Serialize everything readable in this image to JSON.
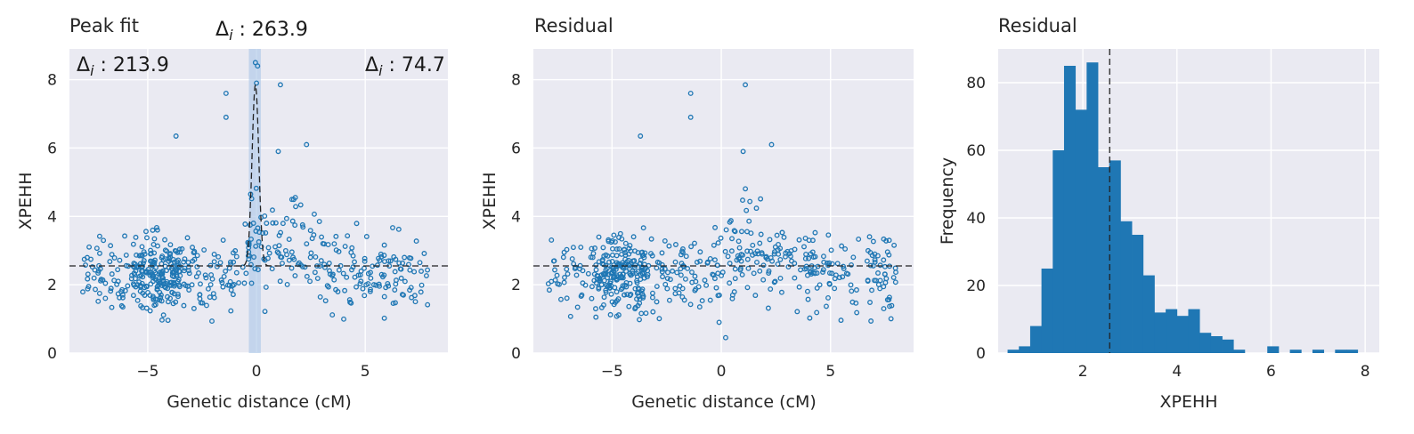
{
  "colors": {
    "point": "#1f77b4",
    "bar": "#1f77b4",
    "panel_bg": "#eaeaf2",
    "grid": "#ffffff",
    "dashed": "#222222",
    "highlight": "#aec7e8"
  },
  "chart_data": [
    {
      "type": "scatter",
      "title": "Peak fit",
      "xlabel": "Genetic distance (cM)",
      "ylabel": "XPEHH",
      "xlim": [
        -8.6,
        8.8
      ],
      "ylim": [
        0,
        8.9
      ],
      "xticks": [
        -5,
        0,
        5
      ],
      "xtick_labels": [
        "−5",
        "0",
        "5"
      ],
      "yticks": [
        0,
        2,
        4,
        6,
        8
      ],
      "ytick_labels": [
        "0",
        "2",
        "4",
        "6",
        "8"
      ],
      "grid": true,
      "baseline": 2.55,
      "highlight_band": [
        -0.35,
        0.2
      ],
      "peak_curve": {
        "center": -0.05,
        "width": 0.22,
        "height": 5.3
      },
      "annotations": [
        {
          "symbol": "Δ",
          "sub": "i",
          "text": " : 263.9"
        },
        {
          "symbol": "Δ",
          "sub": "i",
          "text": " : 213.9"
        },
        {
          "symbol": "Δ",
          "sub": "i",
          "text": " : 74.7"
        }
      ],
      "n_points": 560,
      "seed": 7,
      "outliers": [
        [
          -1.4,
          7.6
        ],
        [
          -1.4,
          6.9
        ],
        [
          1.1,
          7.85
        ],
        [
          -3.7,
          6.35
        ],
        [
          -0.05,
          8.5
        ],
        [
          0.05,
          8.4
        ],
        [
          0.0,
          7.9
        ],
        [
          2.3,
          6.1
        ],
        [
          1.0,
          5.9
        ]
      ]
    },
    {
      "type": "scatter",
      "title": "Residual",
      "xlabel": "Genetic distance (cM)",
      "ylabel": "XPEHH",
      "xlim": [
        -8.6,
        8.8
      ],
      "ylim": [
        0,
        8.9
      ],
      "xticks": [
        -5,
        0,
        5
      ],
      "xtick_labels": [
        "−5",
        "0",
        "5"
      ],
      "yticks": [
        0,
        2,
        4,
        6,
        8
      ],
      "ytick_labels": [
        "0",
        "2",
        "4",
        "6",
        "8"
      ],
      "grid": true,
      "baseline": 2.55,
      "n_points": 560,
      "seed": 11,
      "outliers": [
        [
          -1.4,
          7.6
        ],
        [
          -1.4,
          6.9
        ],
        [
          1.1,
          7.85
        ],
        [
          -3.7,
          6.35
        ],
        [
          2.3,
          6.1
        ],
        [
          1.0,
          5.9
        ],
        [
          0.2,
          0.45
        ],
        [
          -0.1,
          0.9
        ]
      ]
    },
    {
      "type": "histogram",
      "title": "Residual",
      "xlabel": "XPEHH",
      "ylabel": "Frequency",
      "xlim": [
        0.2,
        8.3
      ],
      "ylim": [
        0,
        90
      ],
      "xticks": [
        2,
        4,
        6,
        8
      ],
      "xtick_labels": [
        "2",
        "4",
        "6",
        "8"
      ],
      "yticks": [
        0,
        20,
        40,
        60,
        80
      ],
      "ytick_labels": [
        "0",
        "20",
        "40",
        "60",
        "80"
      ],
      "grid": true,
      "vline": 2.57,
      "bin_start": 0.4,
      "bin_width": 0.24,
      "values": [
        1,
        2,
        8,
        25,
        60,
        85,
        72,
        86,
        55,
        57,
        39,
        35,
        23,
        12,
        13,
        11,
        13,
        6,
        5,
        4,
        1,
        0,
        0,
        2,
        0,
        1,
        0,
        1,
        0,
        1,
        1,
        0
      ]
    }
  ]
}
